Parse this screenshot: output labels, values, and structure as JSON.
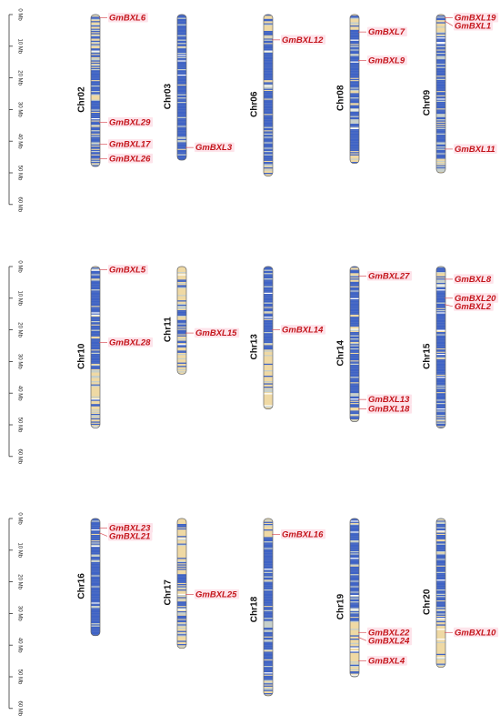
{
  "axis": {
    "unit": "Mb",
    "ticks": [
      0,
      10,
      20,
      30,
      40,
      50,
      60
    ],
    "tick_labels": [
      "0 Mb",
      "10 Mb",
      "20 Mb",
      "30 Mb",
      "40 Mb",
      "50 Mb",
      "60 Mb"
    ]
  },
  "colors": {
    "gene_label": "#c4161c",
    "gene_highlight": "#fde3ea",
    "leader_line": "#d9535c",
    "dense": "#3f63c6",
    "sparse": "#efd9a4",
    "mid": "#c5cfcc"
  },
  "rows": [
    {
      "chromosomes": [
        {
          "name": "Chr02",
          "length": 48,
          "density": "mixed_top",
          "genes": [
            {
              "name": "GmBXL6",
              "pos": 1
            },
            {
              "name": "GmBXL29",
              "pos": 34
            },
            {
              "name": "GmBXL17",
              "pos": 41
            },
            {
              "name": "GmBXL26",
              "pos": 45.5
            }
          ]
        },
        {
          "name": "Chr03",
          "length": 46,
          "density": "dense",
          "genes": [
            {
              "name": "GmBXL3",
              "pos": 42
            }
          ]
        },
        {
          "name": "Chr06",
          "length": 51,
          "density": "mid_dense",
          "genes": [
            {
              "name": "GmBXL12",
              "pos": 8
            }
          ]
        },
        {
          "name": "Chr08",
          "length": 47,
          "density": "mid_dense",
          "genes": [
            {
              "name": "GmBXL7",
              "pos": 5.5
            },
            {
              "name": "GmBXL9",
              "pos": 14.5
            }
          ]
        },
        {
          "name": "Chr09",
          "length": 50,
          "density": "mid_dense",
          "genes": [
            {
              "name": "GmBXL19",
              "pos": 1
            },
            {
              "name": "GmBXL1",
              "pos": 2
            },
            {
              "name": "GmBXL11",
              "pos": 42.5
            }
          ]
        }
      ]
    },
    {
      "chromosomes": [
        {
          "name": "Chr10",
          "length": 51,
          "density": "top_dense",
          "genes": [
            {
              "name": "GmBXL5",
              "pos": 1
            },
            {
              "name": "GmBXL28",
              "pos": 24
            }
          ]
        },
        {
          "name": "Chr11",
          "length": 34,
          "density": "sparse_mid",
          "genes": [
            {
              "name": "GmBXL15",
              "pos": 21
            }
          ]
        },
        {
          "name": "Chr13",
          "length": 45,
          "density": "top_dense_long",
          "genes": [
            {
              "name": "GmBXL14",
              "pos": 20
            }
          ]
        },
        {
          "name": "Chr14",
          "length": 49,
          "density": "mid_dense",
          "genes": [
            {
              "name": "GmBXL27",
              "pos": 3
            },
            {
              "name": "GmBXL13",
              "pos": 42
            },
            {
              "name": "GmBXL18",
              "pos": 45
            }
          ]
        },
        {
          "name": "Chr15",
          "length": 51,
          "density": "mid_dense",
          "genes": [
            {
              "name": "GmBXL8",
              "pos": 4
            },
            {
              "name": "GmBXL20",
              "pos": 10
            },
            {
              "name": "GmBXL2",
              "pos": 12
            }
          ]
        }
      ]
    },
    {
      "chromosomes": [
        {
          "name": "Chr16",
          "length": 37,
          "density": "dense",
          "genes": [
            {
              "name": "GmBXL23",
              "pos": 3
            },
            {
              "name": "GmBXL21",
              "pos": 4.5
            }
          ]
        },
        {
          "name": "Chr17",
          "length": 41,
          "density": "sparse_mid",
          "genes": [
            {
              "name": "GmBXL25",
              "pos": 24
            }
          ]
        },
        {
          "name": "Chr18",
          "length": 56,
          "density": "mid_dense",
          "genes": [
            {
              "name": "GmBXL16",
              "pos": 5
            }
          ]
        },
        {
          "name": "Chr19",
          "length": 50,
          "density": "top_dense",
          "genes": [
            {
              "name": "GmBXL22",
              "pos": 36
            },
            {
              "name": "GmBXL24",
              "pos": 37.5
            },
            {
              "name": "GmBXL4",
              "pos": 45
            }
          ]
        },
        {
          "name": "Chr20",
          "length": 47,
          "density": "top_dense",
          "genes": [
            {
              "name": "GmBXL10",
              "pos": 36
            }
          ]
        }
      ]
    }
  ]
}
